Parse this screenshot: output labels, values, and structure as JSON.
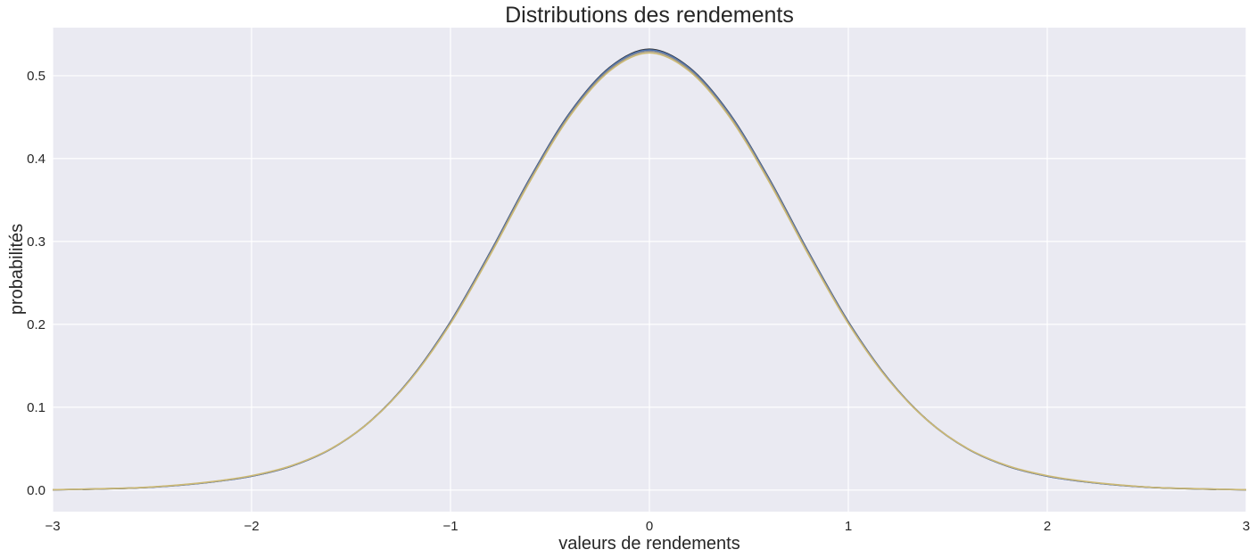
{
  "chart_data": {
    "type": "line",
    "title": "Distributions des rendements",
    "xlabel": "valeurs de rendements",
    "ylabel": "probabilités",
    "xlim": [
      -3,
      3
    ],
    "ylim": [
      -0.026,
      0.558
    ],
    "grid": true,
    "background": "#EAEAF2",
    "grid_color": "#FFFFFF",
    "xticks": [
      -3,
      -2,
      -1,
      0,
      1,
      2,
      3
    ],
    "xtick_labels": [
      "−3",
      "−2",
      "−1",
      "0",
      "1",
      "2",
      "3"
    ],
    "yticks": [
      0.0,
      0.1,
      0.2,
      0.3,
      0.4,
      0.5
    ],
    "ytick_labels": [
      "0.0",
      "0.1",
      "0.2",
      "0.3",
      "0.4",
      "0.5"
    ],
    "series": [
      {
        "color": "#333333",
        "x": [
          -2.85,
          -2.6,
          -2.4,
          -2.2,
          -2.0,
          -1.8,
          -1.6,
          -1.4,
          -1.2,
          -1.0,
          -0.8,
          -0.6,
          -0.4,
          -0.2,
          0.0,
          0.2,
          0.4,
          0.6,
          0.8,
          1.0,
          1.2,
          1.4,
          1.6,
          1.8,
          2.0,
          2.2,
          2.4,
          2.6,
          2.85
        ],
        "y": [
          0.0008,
          0.0024,
          0.0052,
          0.0098,
          0.0168,
          0.0289,
          0.0498,
          0.0838,
          0.1345,
          0.2032,
          0.2872,
          0.3766,
          0.4553,
          0.51,
          0.532,
          0.51,
          0.4553,
          0.3766,
          0.2872,
          0.2032,
          0.1345,
          0.0838,
          0.0498,
          0.0289,
          0.0168,
          0.0098,
          0.0052,
          0.0024,
          0.0008
        ]
      },
      {
        "color": "#4C72B0",
        "x": [
          -3.0,
          -2.6,
          -2.4,
          -2.2,
          -2.0,
          -1.8,
          -1.6,
          -1.4,
          -1.2,
          -1.0,
          -0.8,
          -0.6,
          -0.4,
          -0.2,
          0.0,
          0.2,
          0.4,
          0.6,
          0.8,
          1.0,
          1.2,
          1.4,
          1.6,
          1.8,
          2.0,
          2.2,
          2.4,
          2.6,
          3.0
        ],
        "y": [
          0.0003,
          0.0024,
          0.0051,
          0.0097,
          0.0167,
          0.0288,
          0.0497,
          0.0836,
          0.1342,
          0.2028,
          0.2867,
          0.376,
          0.4546,
          0.5092,
          0.531,
          0.5092,
          0.4546,
          0.376,
          0.2867,
          0.2028,
          0.1342,
          0.0836,
          0.0497,
          0.0288,
          0.0167,
          0.0097,
          0.0051,
          0.0024,
          0.0003
        ]
      },
      {
        "color": "#8C8C8C",
        "x": [
          -3.0,
          -2.6,
          -2.4,
          -2.2,
          -2.0,
          -1.8,
          -1.6,
          -1.4,
          -1.2,
          -1.0,
          -0.8,
          -0.6,
          -0.4,
          -0.2,
          0.0,
          0.2,
          0.4,
          0.6,
          0.8,
          1.0,
          1.2,
          1.4,
          1.6,
          1.8,
          2.0,
          2.2,
          2.4,
          2.6,
          3.0
        ],
        "y": [
          0.0003,
          0.0025,
          0.0053,
          0.0099,
          0.017,
          0.0291,
          0.0499,
          0.0836,
          0.1339,
          0.202,
          0.2855,
          0.3746,
          0.4531,
          0.5076,
          0.5295,
          0.5076,
          0.4531,
          0.3746,
          0.2855,
          0.202,
          0.1339,
          0.0836,
          0.0499,
          0.0291,
          0.017,
          0.0099,
          0.0053,
          0.0025,
          0.0003
        ]
      },
      {
        "color": "#CCB974",
        "x": [
          -3.0,
          -2.6,
          -2.4,
          -2.2,
          -2.0,
          -1.8,
          -1.6,
          -1.4,
          -1.2,
          -1.0,
          -0.8,
          -0.6,
          -0.4,
          -0.2,
          0.0,
          0.2,
          0.4,
          0.6,
          0.8,
          1.0,
          1.2,
          1.4,
          1.6,
          1.8,
          2.0,
          2.2,
          2.4,
          2.6,
          3.0
        ],
        "y": [
          0.0004,
          0.0026,
          0.0055,
          0.0102,
          0.0174,
          0.0295,
          0.0502,
          0.0836,
          0.1334,
          0.2008,
          0.2838,
          0.3727,
          0.4511,
          0.5057,
          0.5275,
          0.5057,
          0.4511,
          0.3727,
          0.2838,
          0.2008,
          0.1334,
          0.0836,
          0.0502,
          0.0295,
          0.0174,
          0.0102,
          0.0055,
          0.0026,
          0.0004
        ]
      }
    ]
  }
}
